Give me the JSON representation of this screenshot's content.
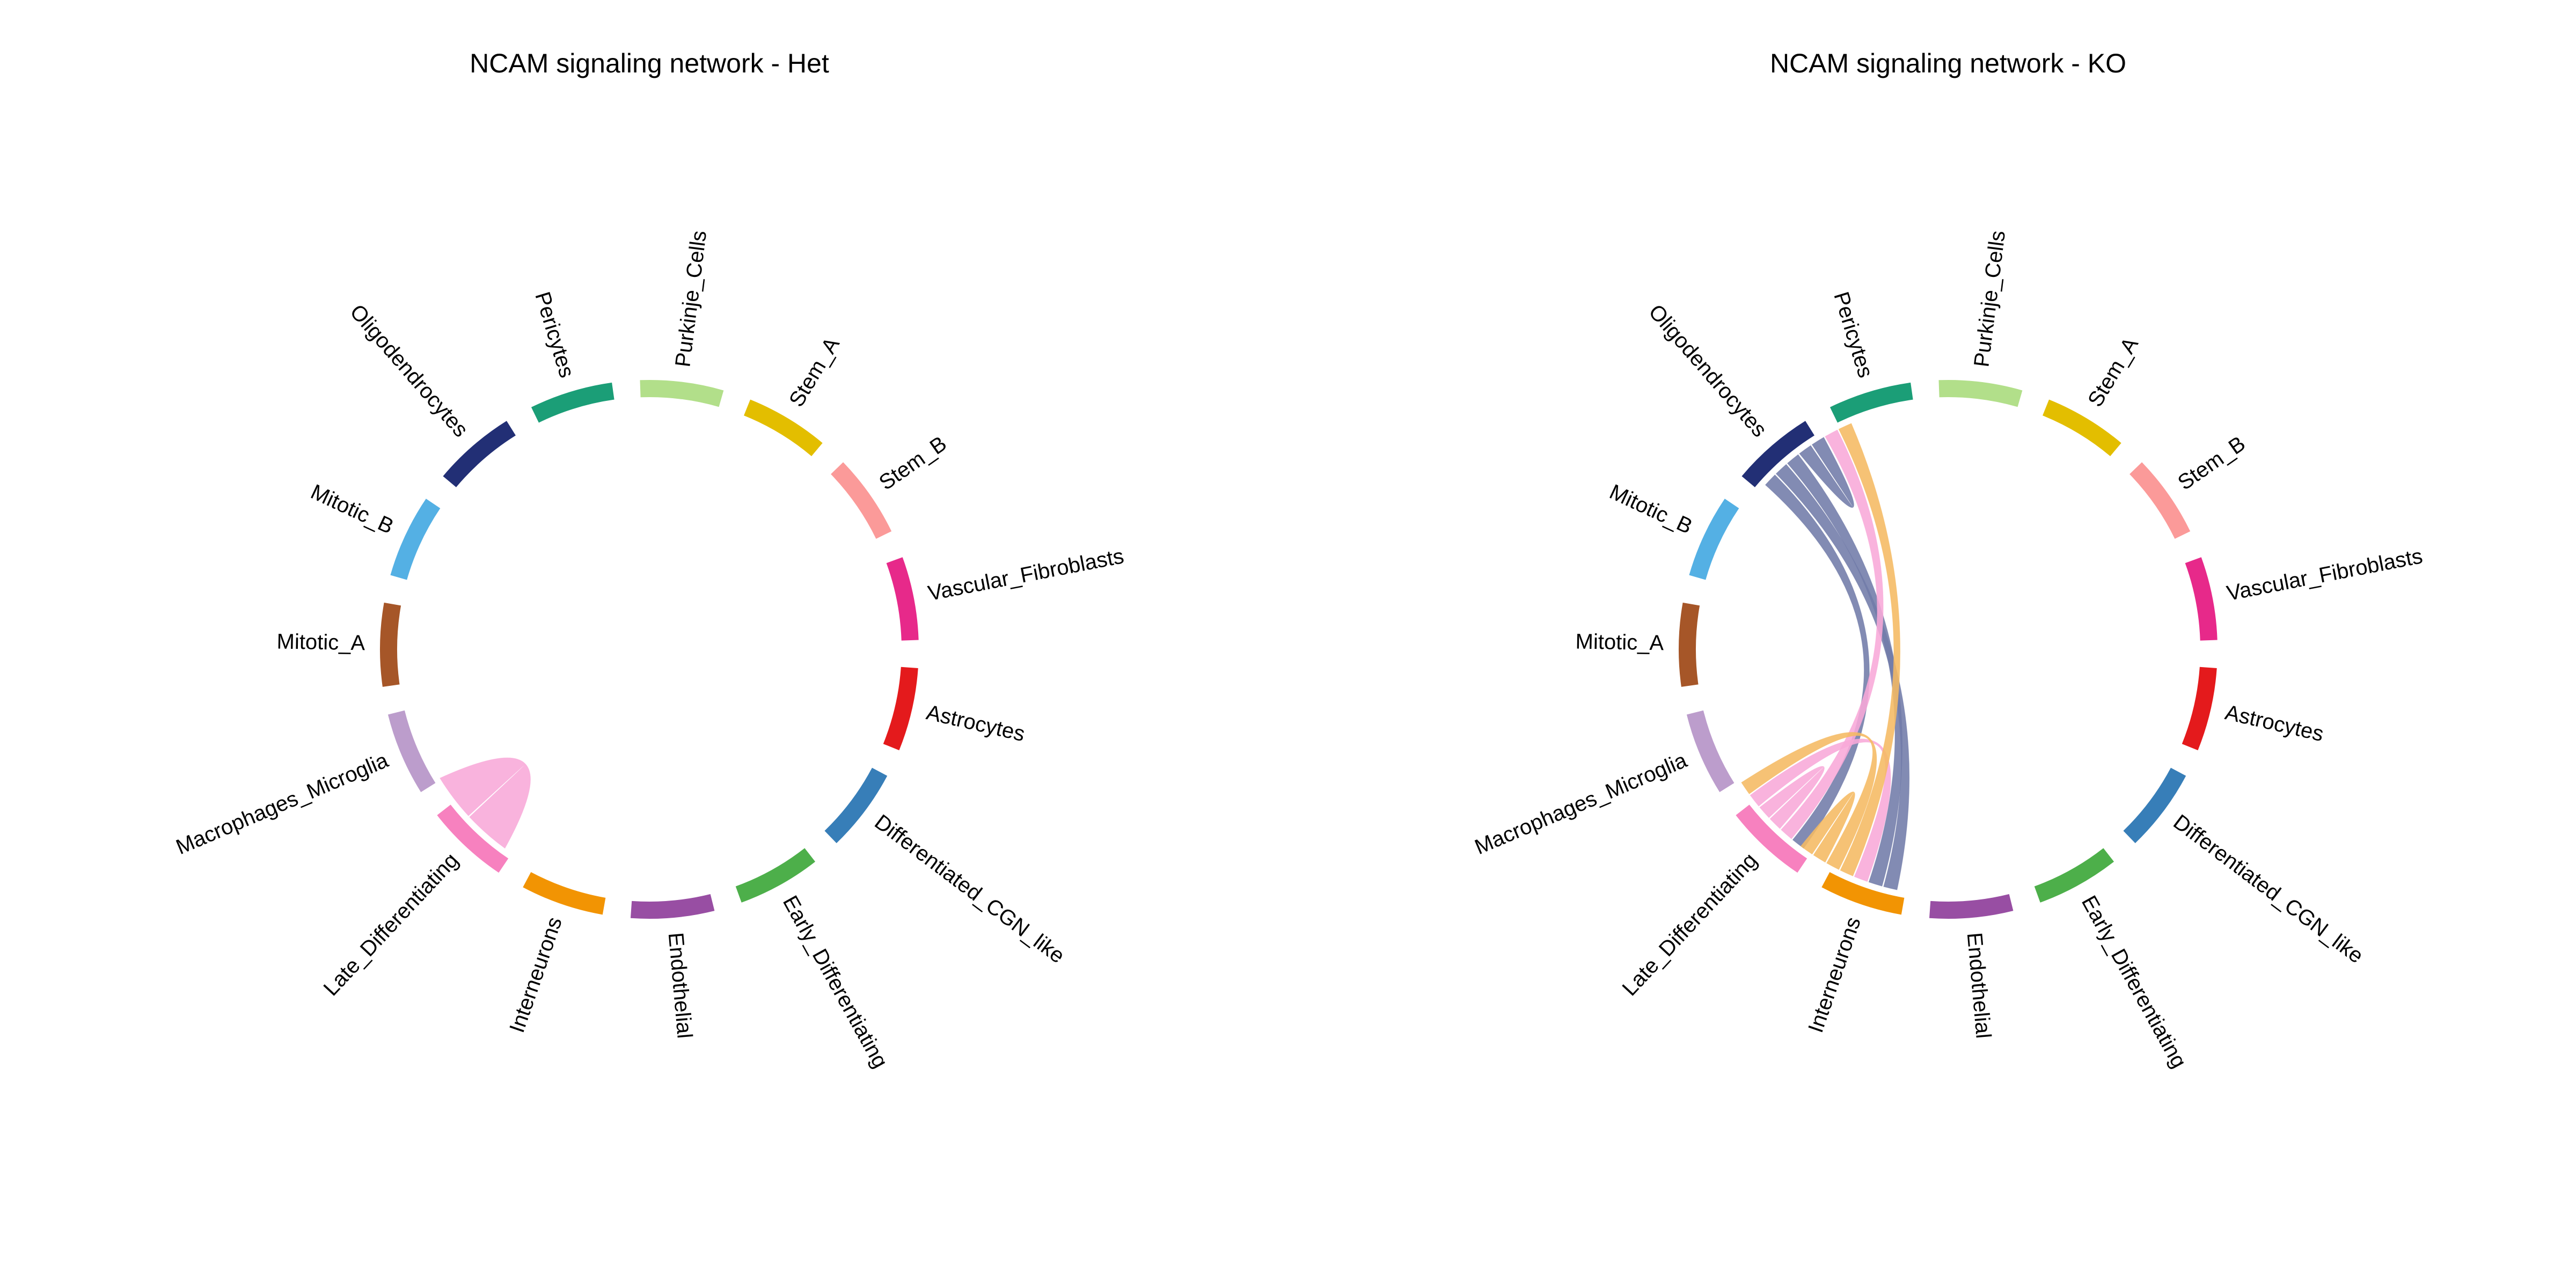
{
  "panels": [
    {
      "id": "het",
      "title": "NCAM signaling network - Het",
      "links": [
        {
          "from": "Late_Differentiating",
          "to": "Late_Differentiating",
          "color": "#F8A9D8"
        }
      ]
    },
    {
      "id": "ko",
      "title": "NCAM signaling network - KO",
      "links": [
        {
          "from": "Oligodendrocytes",
          "to": "Late_Differentiating",
          "color": "#717BA8"
        },
        {
          "from": "Oligodendrocytes",
          "to": "Interneurons",
          "color": "#717BA8"
        },
        {
          "from": "Oligodendrocytes",
          "to": "Interneurons",
          "color": "#717BA8"
        },
        {
          "from": "Oligodendrocytes",
          "to": "Oligodendrocytes",
          "color": "#717BA8"
        },
        {
          "from": "Late_Differentiating",
          "to": "Oligodendrocytes",
          "color": "#F8A9D8"
        },
        {
          "from": "Late_Differentiating",
          "to": "Late_Differentiating",
          "color": "#F8A9D8"
        },
        {
          "from": "Late_Differentiating",
          "to": "Interneurons",
          "color": "#F8A9D8"
        },
        {
          "from": "Interneurons",
          "to": "Oligodendrocytes",
          "color": "#F5BA62"
        },
        {
          "from": "Interneurons",
          "to": "Late_Differentiating",
          "color": "#F5BA62"
        },
        {
          "from": "Interneurons",
          "to": "Interneurons",
          "color": "#F5BA62"
        }
      ]
    }
  ],
  "sectors": [
    {
      "name": "Astrocytes",
      "color": "#E41A1C"
    },
    {
      "name": "Differentiated_CGN_like",
      "color": "#377EB8"
    },
    {
      "name": "Early_Differentiating",
      "color": "#4DAF4A"
    },
    {
      "name": "Endothelial",
      "color": "#984EA3"
    },
    {
      "name": "Interneurons",
      "color": "#F29403"
    },
    {
      "name": "Late_Differentiating",
      "color": "#F781BF"
    },
    {
      "name": "Macrophages_Microglia",
      "color": "#BC9DCC"
    },
    {
      "name": "Mitotic_A",
      "color": "#A65628"
    },
    {
      "name": "Mitotic_B",
      "color": "#54B0E4"
    },
    {
      "name": "Oligodendrocytes",
      "color": "#222F75"
    },
    {
      "name": "Pericytes",
      "color": "#1B9E77"
    },
    {
      "name": "Purkinje_Cells",
      "color": "#B2DF8A"
    },
    {
      "name": "Stem_A",
      "color": "#E3BE00"
    },
    {
      "name": "Stem_B",
      "color": "#FB9A99"
    },
    {
      "name": "Vascular_Fibroblasts",
      "color": "#E7298A"
    }
  ]
}
